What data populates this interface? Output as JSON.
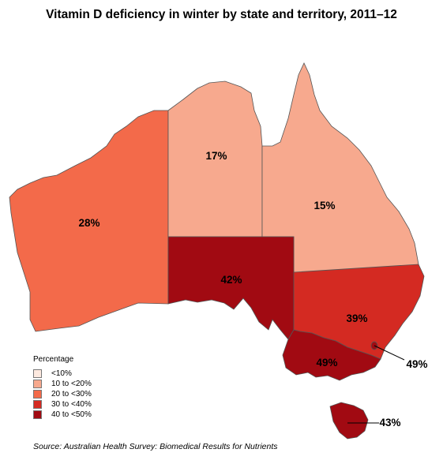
{
  "title": "Vitamin D deficiency in winter by state and territory, 2011–12",
  "source": "Source: Australian Health Survey: Biomedical Results for Nutrients",
  "legend": {
    "title": "Percentage",
    "items": [
      {
        "label": "<10%",
        "color": "#fde9df"
      },
      {
        "label": "10 to <20%",
        "color": "#f7a98e"
      },
      {
        "label": "20 to <30%",
        "color": "#f36a4a"
      },
      {
        "label": "30 to <40%",
        "color": "#d42a22"
      },
      {
        "label": "40 to <50%",
        "color": "#a10a12"
      }
    ]
  },
  "regions": {
    "wa": {
      "label": "28%",
      "value": 28,
      "color": "#f36a4a"
    },
    "nt": {
      "label": "17%",
      "value": 17,
      "color": "#f7a98e"
    },
    "qld": {
      "label": "15%",
      "value": 15,
      "color": "#f7a98e"
    },
    "sa": {
      "label": "42%",
      "value": 42,
      "color": "#a10a12"
    },
    "nsw": {
      "label": "39%",
      "value": 39,
      "color": "#d42a22"
    },
    "vic": {
      "label": "49%",
      "value": 49,
      "color": "#a10a12"
    },
    "act": {
      "label": "49%",
      "value": 49,
      "color": "#a10a12"
    },
    "tas": {
      "label": "43%",
      "value": 43,
      "color": "#a10a12"
    }
  }
}
